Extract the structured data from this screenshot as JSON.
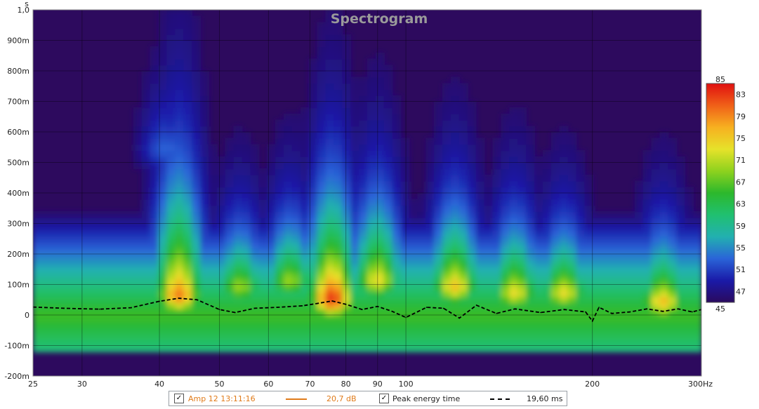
{
  "chart_data": {
    "type": "heatmap",
    "title": "Spectrogram",
    "x_unit": "Hz",
    "y_unit": "s",
    "xscale": "log",
    "xlim": [
      25,
      300
    ],
    "ylim": [
      -0.2,
      1.0
    ],
    "x_ticks": [
      {
        "value": 25,
        "label": "25"
      },
      {
        "value": 30,
        "label": "30"
      },
      {
        "value": 40,
        "label": "40"
      },
      {
        "value": 50,
        "label": "50"
      },
      {
        "value": 60,
        "label": "60"
      },
      {
        "value": 70,
        "label": "70"
      },
      {
        "value": 80,
        "label": "80"
      },
      {
        "value": 90,
        "label": "90"
      },
      {
        "value": 100,
        "label": "100"
      },
      {
        "value": 200,
        "label": "200"
      },
      {
        "value": 300,
        "label": "300Hz"
      }
    ],
    "y_ticks": [
      {
        "value": 1.0,
        "label": "1,0"
      },
      {
        "value": 0.9,
        "label": "900m"
      },
      {
        "value": 0.8,
        "label": "800m"
      },
      {
        "value": 0.7,
        "label": "700m"
      },
      {
        "value": 0.6,
        "label": "600m"
      },
      {
        "value": 0.5,
        "label": "500m"
      },
      {
        "value": 0.4,
        "label": "400m"
      },
      {
        "value": 0.3,
        "label": "300m"
      },
      {
        "value": 0.2,
        "label": "200m"
      },
      {
        "value": 0.1,
        "label": "100m"
      },
      {
        "value": 0.0,
        "label": "0"
      },
      {
        "value": -0.1,
        "label": "-100m"
      },
      {
        "value": -0.2,
        "label": "-200m"
      }
    ],
    "grid": true,
    "colorbar": {
      "range": [
        45,
        85
      ],
      "ticks": [
        "85",
        "83",
        "79",
        "75",
        "71",
        "67",
        "63",
        "59",
        "55",
        "51",
        "47",
        "45"
      ],
      "colors": [
        "#2a0a5e",
        "#1a1aa8",
        "#2a64d8",
        "#22b0b0",
        "#20c070",
        "#2cb82c",
        "#8ed21e",
        "#e6e22a",
        "#f7b020",
        "#f06018",
        "#e01010"
      ]
    },
    "background_color": "#2d0a5e",
    "surface": {
      "baseline_level": 60,
      "peaks": [
        {
          "freq": 43,
          "time": 0.07,
          "level": 80,
          "decay": 0.3
        },
        {
          "freq": 41,
          "time": 0.55,
          "level": 53,
          "decay": 0.18
        },
        {
          "freq": 54,
          "time": 0.1,
          "level": 70,
          "decay": 0.16
        },
        {
          "freq": 65,
          "time": 0.12,
          "level": 70,
          "decay": 0.17
        },
        {
          "freq": 76,
          "time": 0.06,
          "level": 84,
          "decay": 0.26
        },
        {
          "freq": 90,
          "time": 0.12,
          "level": 74,
          "decay": 0.22
        },
        {
          "freq": 120,
          "time": 0.1,
          "level": 76,
          "decay": 0.2
        },
        {
          "freq": 150,
          "time": 0.08,
          "level": 74,
          "decay": 0.18
        },
        {
          "freq": 180,
          "time": 0.08,
          "level": 74,
          "decay": 0.16
        },
        {
          "freq": 260,
          "time": 0.05,
          "level": 76,
          "decay": 0.16
        }
      ]
    },
    "series": [
      {
        "name": "Peak energy time",
        "style": "dashed",
        "color": "#000000",
        "x": [
          25,
          28,
          32,
          36,
          40,
          43,
          46,
          50,
          53,
          57,
          62,
          68,
          72,
          76,
          80,
          85,
          90,
          95,
          100,
          108,
          115,
          122,
          130,
          140,
          150,
          165,
          180,
          195,
          200,
          205,
          215,
          230,
          245,
          260,
          275,
          290,
          300
        ],
        "y": [
          0.026,
          0.022,
          0.019,
          0.024,
          0.045,
          0.055,
          0.05,
          0.018,
          0.008,
          0.022,
          0.025,
          0.03,
          0.038,
          0.046,
          0.035,
          0.018,
          0.028,
          0.012,
          -0.008,
          0.025,
          0.022,
          -0.01,
          0.032,
          0.005,
          0.02,
          0.008,
          0.018,
          0.01,
          -0.02,
          0.025,
          0.005,
          0.01,
          0.02,
          0.012,
          0.02,
          0.01,
          0.018
        ]
      }
    ]
  },
  "legend": {
    "measurement_name": "Amp 12 13:11:16",
    "measurement_color": "#e07b1a",
    "measurement_value": "20,7 dB",
    "peak_label": "Peak energy time",
    "peak_value": "19,60 ms",
    "checkbox_mark": "✓"
  }
}
